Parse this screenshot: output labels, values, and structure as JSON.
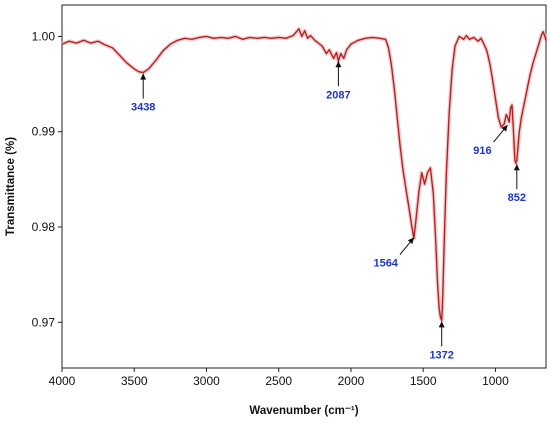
{
  "chart_data": {
    "type": "line",
    "xlabel": "Wavenumber (cm⁻¹)",
    "ylabel": "Transmittance (%)",
    "xlim": [
      4000,
      650
    ],
    "ylim": [
      0.9652,
      1.0033
    ],
    "x_reversed": true,
    "grid": false,
    "line_color": "#b22222",
    "glow_color": "#f4b8b8",
    "annotation_color": "#1f35c9",
    "x_ticks": [
      {
        "value": 4000,
        "label": "4000"
      },
      {
        "value": 3500,
        "label": "3500"
      },
      {
        "value": 3000,
        "label": "3000"
      },
      {
        "value": 2500,
        "label": "2500"
      },
      {
        "value": 2000,
        "label": "2000"
      },
      {
        "value": 1500,
        "label": "1500"
      },
      {
        "value": 1000,
        "label": "1000"
      }
    ],
    "y_ticks": [
      {
        "value": 1.0,
        "label": "1.00"
      },
      {
        "value": 0.99,
        "label": "0.99"
      },
      {
        "value": 0.98,
        "label": "0.98"
      },
      {
        "value": 0.97,
        "label": "0.97"
      }
    ],
    "series": [
      {
        "x": [
          4000,
          3950,
          3900,
          3850,
          3800,
          3750,
          3700,
          3650,
          3600,
          3550,
          3500,
          3470,
          3438,
          3400,
          3350,
          3300,
          3250,
          3200,
          3150,
          3100,
          3050,
          3000,
          2950,
          2900,
          2850,
          2800,
          2750,
          2700,
          2650,
          2600,
          2550,
          2500,
          2450,
          2400,
          2360,
          2340,
          2320,
          2300,
          2280,
          2250,
          2200,
          2170,
          2150,
          2120,
          2100,
          2087,
          2070,
          2050,
          2030,
          2000,
          1950,
          1900,
          1850,
          1800,
          1760,
          1740,
          1720,
          1700,
          1680,
          1660,
          1640,
          1620,
          1600,
          1580,
          1564,
          1550,
          1530,
          1510,
          1490,
          1470,
          1450,
          1430,
          1415,
          1400,
          1390,
          1380,
          1372,
          1365,
          1355,
          1340,
          1320,
          1300,
          1280,
          1250,
          1220,
          1200,
          1180,
          1150,
          1120,
          1100,
          1080,
          1060,
          1040,
          1020,
          1000,
          980,
          960,
          940,
          925,
          916,
          905,
          895,
          885,
          875,
          865,
          858,
          852,
          845,
          835,
          820,
          800,
          780,
          760,
          740,
          720,
          700,
          690,
          680,
          670,
          660,
          650
        ],
        "y": [
          0.9992,
          0.9995,
          0.9993,
          0.9996,
          0.9993,
          0.9995,
          0.9991,
          0.9988,
          0.998,
          0.9972,
          0.9966,
          0.9963,
          0.9962,
          0.9966,
          0.9975,
          0.9985,
          0.9992,
          0.9996,
          0.9998,
          0.9997,
          0.9999,
          1.0,
          0.9998,
          0.9999,
          0.9998,
          1.0,
          0.9997,
          0.9999,
          0.9998,
          0.9999,
          0.9998,
          0.9999,
          0.9998,
          1.0001,
          1.0008,
          1.0,
          1.0006,
          0.9998,
          1.0001,
          0.9996,
          0.999,
          0.9982,
          0.9986,
          0.9977,
          0.9983,
          0.9974,
          0.9982,
          0.9977,
          0.9986,
          0.9992,
          0.9996,
          0.9998,
          0.9999,
          0.9998,
          0.9997,
          0.9988,
          0.997,
          0.9945,
          0.9915,
          0.9885,
          0.986,
          0.984,
          0.9822,
          0.9802,
          0.9788,
          0.9808,
          0.9837,
          0.9857,
          0.9845,
          0.9857,
          0.9862,
          0.9835,
          0.979,
          0.974,
          0.9715,
          0.9705,
          0.9702,
          0.9725,
          0.978,
          0.9855,
          0.992,
          0.9965,
          0.999,
          1.0,
          0.9997,
          1.0001,
          0.9997,
          0.9999,
          0.9995,
          0.9998,
          0.9992,
          0.9985,
          0.9972,
          0.9955,
          0.9935,
          0.9915,
          0.9905,
          0.9908,
          0.9918,
          0.9915,
          0.991,
          0.9925,
          0.9928,
          0.99,
          0.987,
          0.9867,
          0.987,
          0.9882,
          0.99,
          0.9915,
          0.993,
          0.9945,
          0.996,
          0.9972,
          0.9982,
          0.9992,
          0.9997,
          1.0002,
          1.0005,
          1.0001,
          0.9996
        ]
      }
    ],
    "annotations": [
      {
        "label": "3438",
        "x": 3438,
        "y": 0.9962,
        "dir": "below"
      },
      {
        "label": "2087",
        "x": 2087,
        "y": 0.9975,
        "dir": "below"
      },
      {
        "label": "1564",
        "x": 1564,
        "y": 0.979,
        "dir": "below-left"
      },
      {
        "label": "1372",
        "x": 1372,
        "y": 0.9702,
        "dir": "below"
      },
      {
        "label": "916",
        "x": 916,
        "y": 0.9908,
        "dir": "below-left"
      },
      {
        "label": "852",
        "x": 852,
        "y": 0.9867,
        "dir": "below"
      }
    ]
  }
}
